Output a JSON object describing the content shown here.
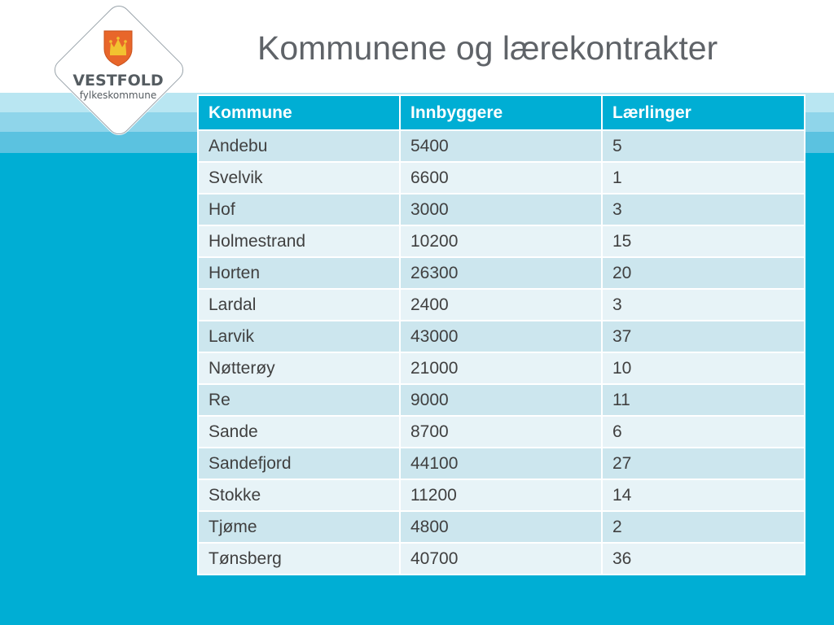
{
  "logo": {
    "name": "VESTFOLD",
    "subtitle": "fylkeskommune"
  },
  "title": "Kommunene og lærekontrakter",
  "table": {
    "headers": [
      "Kommune",
      "Innbyggere",
      "Lærlinger"
    ],
    "rows": [
      [
        "Andebu",
        "5400",
        "5"
      ],
      [
        "Svelvik",
        "6600",
        "1"
      ],
      [
        "Hof",
        "3000",
        "3"
      ],
      [
        "Holmestrand",
        "10200",
        "15"
      ],
      [
        "Horten",
        "26300",
        "20"
      ],
      [
        "Lardal",
        "2400",
        "3"
      ],
      [
        "Larvik",
        "43000",
        "37"
      ],
      [
        "Nøtterøy",
        "21000",
        "10"
      ],
      [
        "Re",
        "9000",
        "11"
      ],
      [
        "Sande",
        "8700",
        "6"
      ],
      [
        "Sandefjord",
        "44100",
        "27"
      ],
      [
        "Stokke",
        "11200",
        "14"
      ],
      [
        "Tjøme",
        "4800",
        "2"
      ],
      [
        "Tønsberg",
        "40700",
        "36"
      ]
    ]
  },
  "colors": {
    "accent": "#00aed4",
    "row_dark": "#cce6ee",
    "row_light": "#e7f3f7",
    "title_text": "#5f6368",
    "shield": "#e8662a",
    "crown": "#f2c230"
  }
}
